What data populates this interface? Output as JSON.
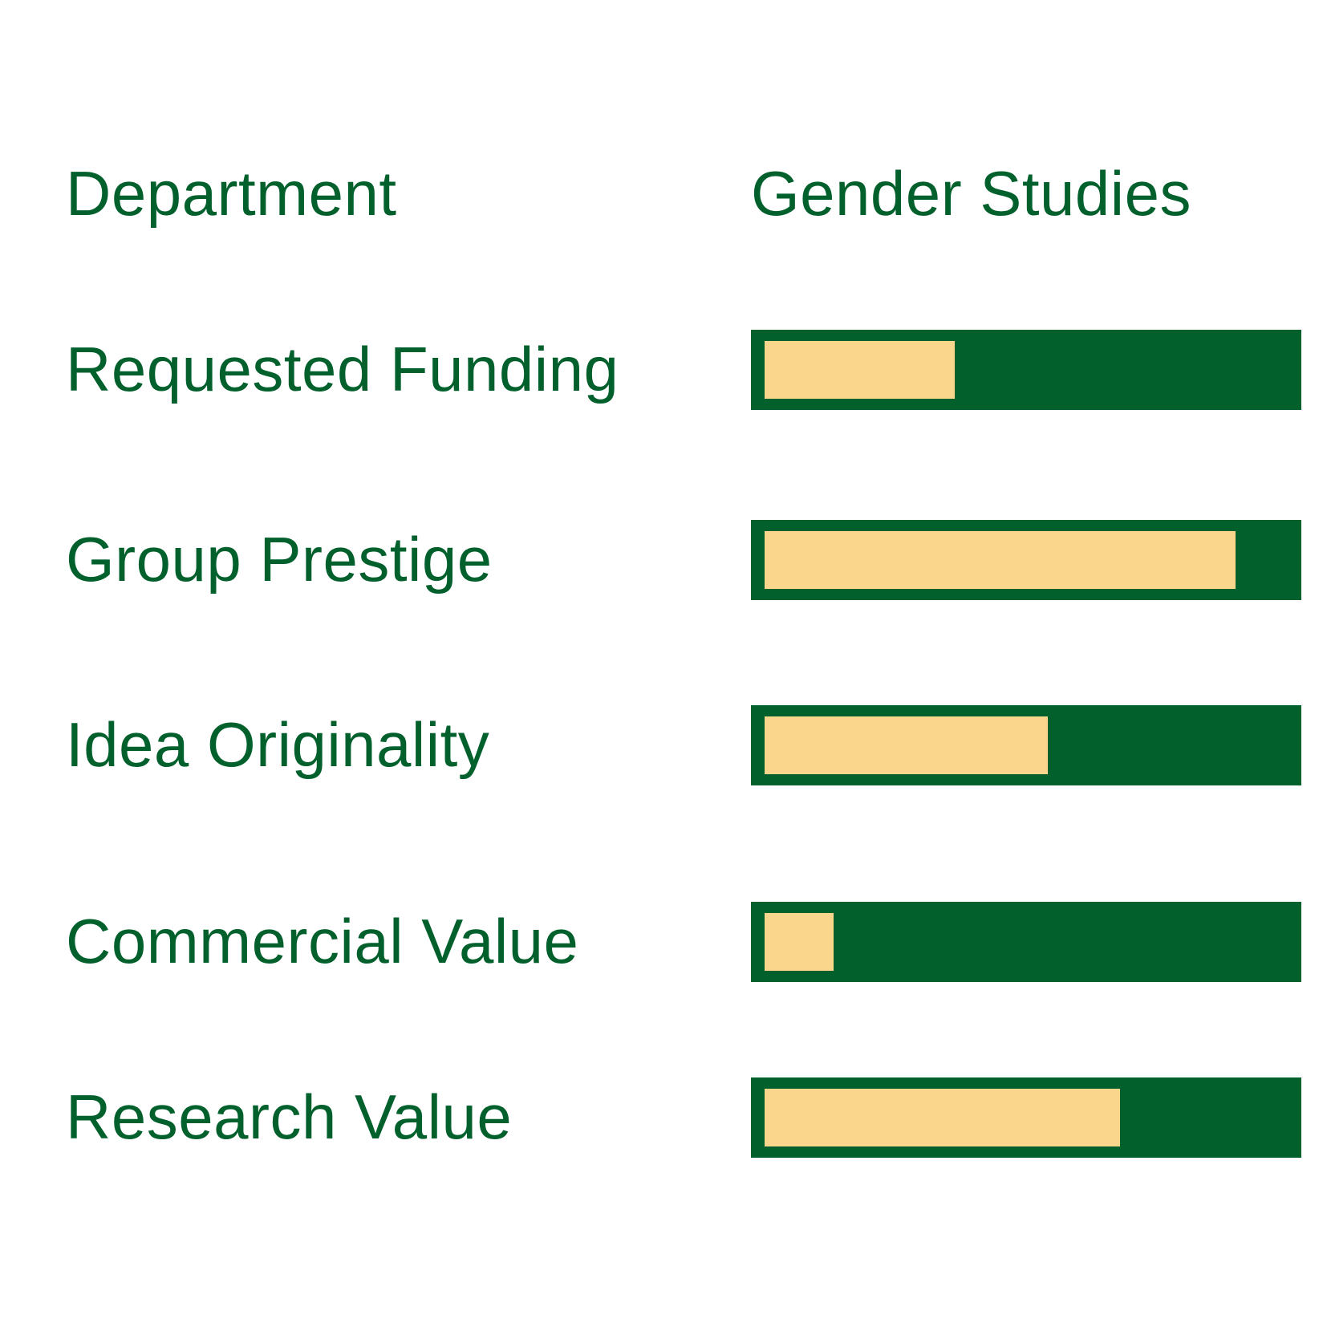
{
  "header": {
    "label": "Department",
    "value": "Gender Studies"
  },
  "colors": {
    "bar_track": "#02602c",
    "bar_fill": "#fad68c",
    "text": "#02602c"
  },
  "chart_data": {
    "type": "bar",
    "orientation": "horizontal",
    "title": "",
    "department": "Gender Studies",
    "categories": [
      "Requested Funding",
      "Group Prestige",
      "Idea Originality",
      "Commercial Value",
      "Research Value"
    ],
    "values": [
      0.37,
      0.88,
      0.54,
      0.15,
      0.67
    ],
    "value_scale": "fraction of bar track (0 to 1)",
    "xlim": [
      0,
      1
    ],
    "grid": false,
    "legend": "none"
  }
}
